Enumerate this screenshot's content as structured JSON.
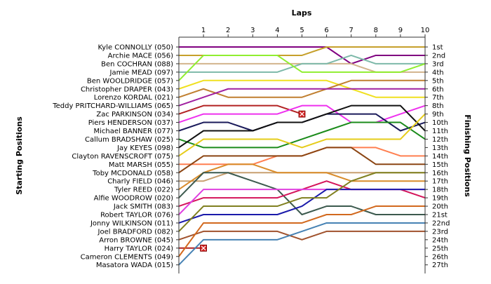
{
  "chart_data": {
    "type": "line",
    "title": "",
    "xlabel": "Laps",
    "ylabel_left": "Starting Positions",
    "ylabel_right": "Finishing Positions",
    "laps": [
      1,
      2,
      3,
      4,
      5,
      6,
      7,
      8,
      9,
      10
    ],
    "finish_labels": [
      "1st",
      "2nd",
      "3rd",
      "4th",
      "5th",
      "6th",
      "7th",
      "8th",
      "9th",
      "10th",
      "11th",
      "12th",
      "13th",
      "14th",
      "15th",
      "16th",
      "17th",
      "18th",
      "19th",
      "20th",
      "21st",
      "22nd",
      "23rd",
      "24th",
      "25th",
      "26th",
      "27th"
    ],
    "grid": false,
    "drivers": [
      {
        "name": "Kyle CONNOLLY (050)",
        "color": "#800080",
        "positions": [
          1,
          1,
          1,
          1,
          1,
          1,
          3,
          2,
          2,
          2
        ]
      },
      {
        "name": "Archie MACE (056)",
        "color": "#c6a02b",
        "positions": [
          2,
          2,
          2,
          2,
          2,
          1,
          1,
          1,
          1,
          1
        ]
      },
      {
        "name": "Ben COCHRAN (088)",
        "color": "#d2b48c",
        "positions": [
          3,
          3,
          3,
          3,
          3,
          3,
          3,
          4,
          4,
          4
        ]
      },
      {
        "name": "Jamie MEAD (097)",
        "color": "#7db9a9",
        "positions": [
          4,
          4,
          4,
          4,
          3,
          3,
          2,
          3,
          3,
          3
        ]
      },
      {
        "name": "Ben WOOLDRIDGE (057)",
        "color": "#90ee30",
        "positions": [
          2,
          2,
          2,
          2,
          4,
          4,
          4,
          4,
          4,
          3
        ]
      },
      {
        "name": "Christopher DRAPER (043)",
        "color": "#f0e020",
        "positions": [
          5,
          5,
          5,
          5,
          5,
          5,
          6,
          7,
          7,
          7
        ]
      },
      {
        "name": "Lorenzo KORDAL (021)",
        "color": "#c07f30",
        "positions": [
          6,
          7,
          7,
          7,
          7,
          6,
          5,
          5,
          5,
          5
        ]
      },
      {
        "name": "Teddy PRITCHARD-WILLIAMS (065)",
        "color": "#a020a0",
        "positions": [
          7,
          6,
          6,
          6,
          6,
          6,
          6,
          6,
          6,
          6
        ]
      },
      {
        "name": "Zac PARKINSON (034)",
        "color": "#b22222",
        "positions": [
          8,
          8,
          8,
          8,
          9
        ],
        "retired": true
      },
      {
        "name": "Piers HENDERSON (037)",
        "color": "#ee30ee",
        "positions": [
          9,
          9,
          9,
          9,
          8,
          8,
          10,
          10,
          9,
          8
        ]
      },
      {
        "name": "Michael BANNER (077)",
        "color": "#1a1a5a",
        "positions": [
          10,
          10,
          11,
          10,
          10,
          9,
          9,
          9,
          11,
          10
        ]
      },
      {
        "name": "Callum BRADSHAW (025)",
        "color": "#1b8b1b",
        "positions": [
          13,
          13,
          13,
          13,
          12,
          11,
          10,
          10,
          10,
          12
        ]
      },
      {
        "name": "Jay KEYES (098)",
        "color": "#111111",
        "positions": [
          11,
          11,
          11,
          10,
          10,
          9,
          8,
          8,
          8,
          11
        ]
      },
      {
        "name": "Clayton RAVENSCROFT (075)",
        "color": "#e6cc1a",
        "positions": [
          12,
          12,
          12,
          12,
          13,
          12,
          12,
          12,
          12,
          9
        ]
      },
      {
        "name": "Matt MARSH (055)",
        "color": "#ff7f50",
        "positions": [
          15,
          15,
          15,
          14,
          14,
          13,
          13,
          13,
          14,
          14
        ]
      },
      {
        "name": "Toby MCDONALD (058)",
        "color": "#8b4513",
        "positions": [
          14,
          14,
          14,
          14,
          14,
          13,
          13,
          15,
          15,
          15
        ]
      },
      {
        "name": "Charly FIELD (046)",
        "color": "#c8a070",
        "positions": [
          17,
          16,
          16,
          16,
          16,
          16,
          16,
          16,
          16,
          16
        ]
      },
      {
        "name": "Tyler REED (022)",
        "color": "#d98c2b",
        "positions": [
          16,
          15,
          15,
          16,
          16,
          16,
          17,
          17,
          17,
          17
        ]
      },
      {
        "name": "Alfie WOODROW (020)",
        "color": "#3c5a4e",
        "positions": [
          16,
          16,
          17,
          18,
          21,
          20,
          20,
          21,
          21,
          21
        ]
      },
      {
        "name": "Jack SMITH (083)",
        "color": "#d4145a",
        "positions": [
          19,
          19,
          19,
          19,
          18,
          17,
          18,
          18,
          18,
          19
        ]
      },
      {
        "name": "Robert TAYLOR (076)",
        "color": "#e040e0",
        "positions": [
          18,
          18,
          18,
          18,
          18,
          18,
          18,
          18,
          18,
          18
        ]
      },
      {
        "name": "Jonny WILKINSON (011)",
        "color": "#1a1aaa",
        "positions": [
          21,
          21,
          21,
          21,
          20,
          18,
          18,
          18,
          18,
          18
        ]
      },
      {
        "name": "Joel BRADFORD (082)",
        "color": "#808020",
        "positions": [
          20,
          20,
          20,
          20,
          19,
          19,
          17,
          16,
          16,
          16
        ]
      },
      {
        "name": "Arron BROWNE (045)",
        "color": "#a0522d",
        "positions": [
          23,
          23,
          23,
          23,
          24,
          23,
          23,
          23,
          23,
          23
        ]
      },
      {
        "name": "Harry TAYLOR (024)",
        "color": "#b22222",
        "positions": [
          25
        ],
        "retired": true
      },
      {
        "name": "Cameron CLEMENTS (049)",
        "color": "#d2691e",
        "positions": [
          22,
          22,
          22,
          22,
          22,
          21,
          21,
          20,
          20,
          20
        ]
      },
      {
        "name": "Masatora WADA (015)",
        "color": "#4682b4",
        "positions": [
          24,
          24,
          24,
          24,
          23,
          22,
          22,
          22,
          22,
          22
        ]
      }
    ]
  }
}
